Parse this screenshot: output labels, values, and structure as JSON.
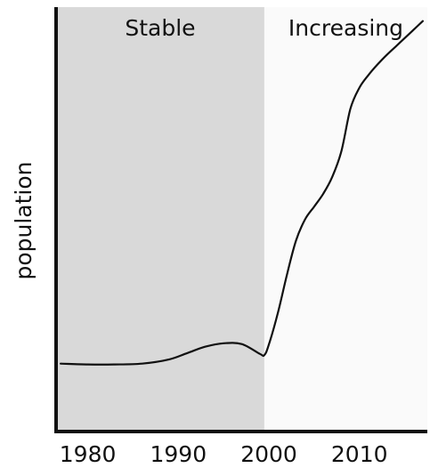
{
  "chart_data": {
    "type": "line",
    "title": "",
    "xlabel": "",
    "ylabel": "population",
    "xlim": [
      1976.5,
      2017.5
    ],
    "ylim": [
      0,
      100
    ],
    "x_ticks": [
      1980,
      1990,
      2000,
      2010
    ],
    "x_tick_labels": [
      "1980",
      "1990",
      "2000",
      "2010"
    ],
    "y_ticks_shown": false,
    "grid": false,
    "regions": [
      {
        "label": "Stable",
        "x_start": 1976.5,
        "x_end": 1999.5,
        "color": "#d9d9d9"
      },
      {
        "label": "Increasing",
        "x_start": 1999.5,
        "x_end": 2017.5,
        "color": "#fafafa"
      }
    ],
    "series": [
      {
        "color": "#111111",
        "x": [
          1977,
          1980,
          1983,
          1986,
          1989,
          1991,
          1993,
          1995,
          1997,
          1999,
          1999.5,
          2000,
          2001,
          2002,
          2003,
          2004,
          2005,
          2006,
          2007,
          2008,
          2009,
          2010,
          2011,
          2012,
          2013,
          2014,
          2015,
          2016,
          2017
        ],
        "y": [
          16,
          15.8,
          15.8,
          16,
          17,
          18.5,
          20,
          20.8,
          20.6,
          18.3,
          18,
          20.5,
          28,
          37,
          45,
          50,
          53,
          56,
          60,
          66,
          76,
          81,
          84,
          86.5,
          88.7,
          90.7,
          92.7,
          94.7,
          96.7
        ]
      }
    ]
  }
}
